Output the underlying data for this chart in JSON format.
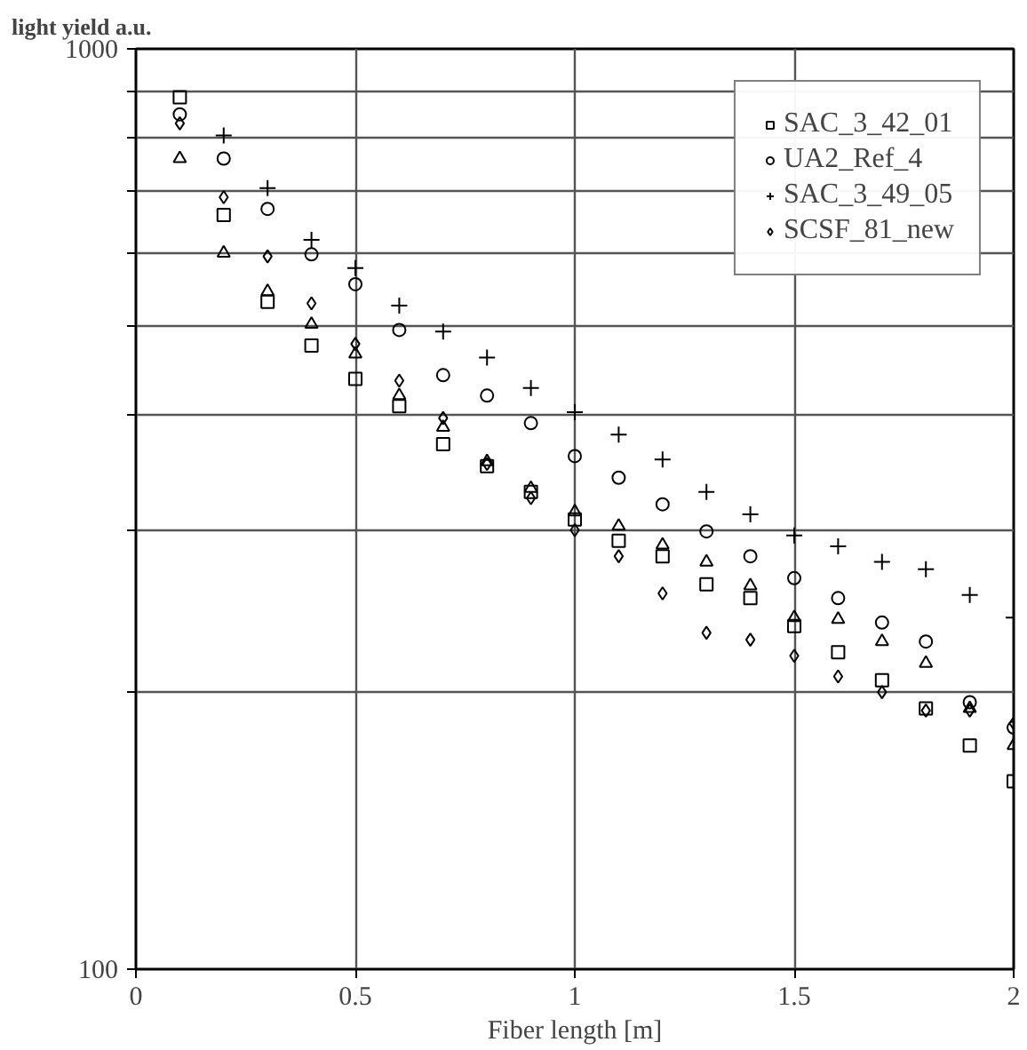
{
  "chart_data": {
    "type": "scatter",
    "ylabel": "light yield a.u.",
    "xlabel": "Fiber length [m]",
    "x": [
      0.1,
      0.2,
      0.3,
      0.4,
      0.5,
      0.6,
      0.7,
      0.8,
      0.9,
      1.0,
      1.1,
      1.2,
      1.3,
      1.4,
      1.5,
      1.6,
      1.7,
      1.8,
      1.9,
      2.0
    ],
    "series": [
      {
        "name": "SAC_3_42_01",
        "color": "#000000",
        "marker": "square",
        "values": [
          886,
          660,
          531,
          476,
          438,
          409,
          372,
          352,
          330,
          308,
          292,
          281,
          262,
          253,
          236,
          221,
          206,
          192,
          175,
          160
        ]
      },
      {
        "name": "UA2_Ref_4",
        "color": "#000000",
        "marker": "circle",
        "values": [
          849,
          760,
          670,
          598,
          555,
          495,
          442,
          420,
          392,
          361,
          342,
          320,
          299,
          281,
          266,
          253,
          238,
          227,
          195,
          183
        ]
      },
      {
        "name": "SAC_3_49_05",
        "color": "#000000",
        "marker": "cross",
        "values": [
          null,
          805,
          706,
          620,
          578,
          526,
          493,
          462,
          428,
          403,
          381,
          358,
          330,
          312,
          296,
          288,
          277,
          272,
          255,
          241
        ]
      },
      {
        "color": "#000000",
        "marker": "triangle",
        "values": [
          760,
          600,
          545,
          502,
          466,
          420,
          388,
          356,
          333,
          314,
          303,
          289,
          277,
          261,
          241,
          240,
          227,
          215,
          192,
          175
        ]
      },
      {
        "name": "SCSF_81_new",
        "color": "#000000",
        "marker": "diamond",
        "values": [
          830,
          690,
          595,
          529,
          478,
          436,
          397,
          354,
          325,
          300,
          281,
          256,
          232,
          228,
          219,
          208,
          200,
          191,
          191,
          185
        ]
      }
    ],
    "xlim": [
      0,
      2
    ],
    "xticks": [
      0,
      0.5,
      1,
      1.5,
      2
    ],
    "log": "y",
    "ylim": [
      100,
      1000
    ],
    "yticks": [
      100,
      {
        "value": 200,
        "label": null
      },
      {
        "value": 300,
        "label": null
      },
      {
        "value": 400,
        "label": null
      },
      {
        "value": 500,
        "label": null
      },
      {
        "value": 600,
        "label": null
      },
      {
        "value": 700,
        "label": null
      },
      {
        "value": 800,
        "label": null
      },
      {
        "value": 900,
        "label": null
      },
      1000
    ],
    "grid": true,
    "legend": "top right"
  }
}
